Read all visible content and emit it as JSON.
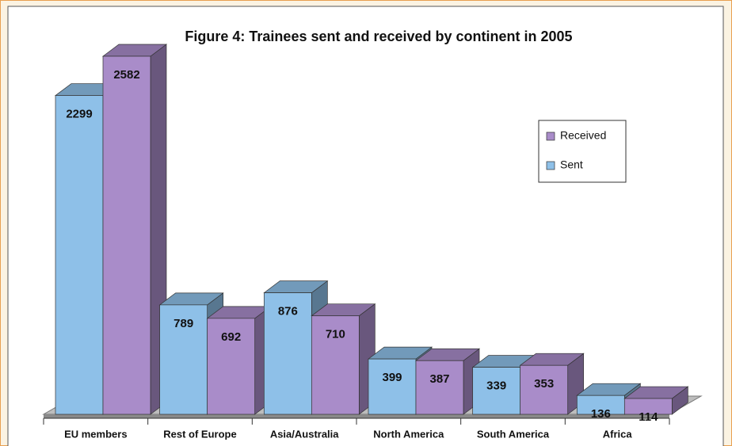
{
  "chart_data": {
    "type": "bar3d",
    "title": "Figure 4:  Trainees sent and received by continent in 2005",
    "categories": [
      "EU members",
      "Rest of Europe",
      "Asia/Australia",
      "North America",
      "South America",
      "Africa"
    ],
    "series": [
      {
        "name": "Sent",
        "color": "#8ec0e8",
        "values": [
          2299,
          789,
          876,
          399,
          339,
          136
        ]
      },
      {
        "name": "Received",
        "color": "#a98cc9",
        "values": [
          2582,
          692,
          710,
          387,
          353,
          114
        ]
      }
    ],
    "legend": "upper right"
  }
}
